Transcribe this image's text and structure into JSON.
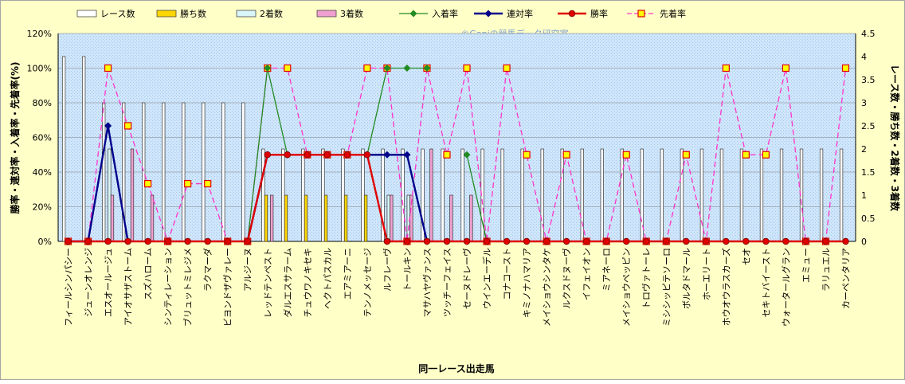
{
  "chart_data": {
    "type": "bar",
    "title": "",
    "watermark": "©Ganiの競馬データ研究室",
    "xlabel": "同一レース出走馬",
    "ylabel_left": "勝率・連対率・入着率・先着率(%)",
    "ylabel_right": "レース数・勝ち数・2着数・3着数",
    "left_ticks": [
      "0%",
      "20%",
      "40%",
      "60%",
      "80%",
      "100%",
      "120%"
    ],
    "right_ticks": [
      "0",
      "0.5",
      "1",
      "1.5",
      "2",
      "2.5",
      "3",
      "3.5",
      "4",
      "4.5"
    ],
    "ylim_left": [
      0,
      120
    ],
    "ylim_right": [
      0,
      4.5
    ],
    "grid": true,
    "legend_position": "top",
    "categories": [
      "フィールシンパシー",
      "ジューンオレンジ",
      "エスオールージュ",
      "アイオサザストーム",
      "スズハローム",
      "シンティレーション",
      "ブリュットミレジメ",
      "ラクマーダ",
      "ビヨンドザヴァレー",
      "アルジーヌ",
      "レッドテンペスト",
      "ダルエスサラーム",
      "チュウワノキセキ",
      "ヘクトパスカル",
      "エアミアーニ",
      "テンノメッセージ",
      "ルフレーヴ",
      "トールキン",
      "マサハヤヴァンス",
      "ツッチーフェイス",
      "セーヌドレーヴ",
      "ウインエーデル",
      "コナコースト",
      "キミノナハマリア",
      "メイショウシンタケ",
      "ルクスドヌーヴ",
      "イフェイオン",
      "ミアネーロ",
      "メイショウペッピン",
      "トロヴァトーレ",
      "ミシシッピテソーロ",
      "ボルタドマール",
      "ホーエリート",
      "ホウオウラスカーズ",
      "セオ",
      "セキトバイースト",
      "ウォータールグラン",
      "エミュー",
      "ラリュエル",
      "カーペンタリア"
    ],
    "series": [
      {
        "name": "レース数",
        "kind": "bar",
        "axis": "right",
        "color": "#ffffff",
        "values": [
          4,
          4,
          3,
          3,
          3,
          3,
          3,
          3,
          3,
          3,
          2,
          2,
          2,
          2,
          2,
          2,
          2,
          2,
          2,
          2,
          2,
          2,
          2,
          2,
          2,
          2,
          2,
          2,
          2,
          2,
          2,
          2,
          2,
          2,
          2,
          2,
          2,
          2,
          2,
          2
        ]
      },
      {
        "name": "勝ち数",
        "kind": "bar",
        "axis": "right",
        "color": "#ffd700",
        "values": [
          0,
          0,
          0,
          0,
          0,
          0,
          0,
          0,
          0,
          0,
          1,
          1,
          1,
          1,
          1,
          1,
          0,
          0,
          0,
          0,
          0,
          0,
          0,
          0,
          0,
          0,
          0,
          0,
          0,
          0,
          0,
          0,
          0,
          0,
          0,
          0,
          0,
          0,
          0,
          0
        ]
      },
      {
        "name": "2着数",
        "kind": "bar",
        "axis": "right",
        "color": "#d9f5f7",
        "values": [
          0,
          0,
          2,
          0,
          0,
          0,
          0,
          0,
          0,
          0,
          0,
          0,
          0,
          0,
          0,
          0,
          1,
          1,
          0,
          0,
          0,
          0,
          0,
          0,
          0,
          0,
          0,
          0,
          0,
          0,
          0,
          0,
          0,
          0,
          0,
          0,
          0,
          0,
          0,
          0
        ]
      },
      {
        "name": "3着数",
        "kind": "bar",
        "axis": "right",
        "color": "#f0a0d0",
        "values": [
          0,
          0,
          1,
          2,
          1,
          0,
          0,
          0,
          0,
          0,
          1,
          0,
          0,
          0,
          0,
          0,
          1,
          1,
          2,
          1,
          1,
          0,
          0,
          0,
          0,
          0,
          0,
          0,
          0,
          0,
          0,
          0,
          0,
          0,
          0,
          0,
          0,
          0,
          0,
          0
        ]
      },
      {
        "name": "入着率",
        "kind": "line",
        "axis": "left",
        "color": "#228b22",
        "marker": "diamond",
        "values": [
          0,
          0,
          66.7,
          0,
          null,
          null,
          null,
          null,
          null,
          0,
          100,
          50,
          null,
          null,
          null,
          50,
          100,
          100,
          100,
          null,
          50,
          0,
          null,
          null,
          null,
          null,
          null,
          null,
          null,
          null,
          null,
          null,
          null,
          null,
          null,
          null,
          null,
          null,
          null,
          null
        ]
      },
      {
        "name": "連対率",
        "kind": "line",
        "axis": "left",
        "color": "#00008b",
        "marker": "diamond",
        "values": [
          0,
          0,
          66.7,
          0,
          null,
          null,
          null,
          null,
          null,
          0,
          50,
          50,
          null,
          null,
          null,
          50,
          50,
          50,
          0,
          null,
          null,
          null,
          null,
          null,
          null,
          null,
          null,
          null,
          null,
          null,
          null,
          null,
          null,
          null,
          null,
          null,
          null,
          null,
          null,
          null
        ]
      },
      {
        "name": "勝率",
        "kind": "line",
        "axis": "left",
        "color": "#e00000",
        "marker": "circle",
        "values": [
          0,
          0,
          0,
          0,
          0,
          0,
          0,
          0,
          0,
          0,
          50,
          50,
          50,
          50,
          50,
          50,
          0,
          0,
          0,
          0,
          0,
          0,
          0,
          0,
          0,
          0,
          0,
          0,
          0,
          0,
          0,
          0,
          0,
          0,
          0,
          0,
          0,
          0,
          0,
          0
        ]
      },
      {
        "name": "先着率",
        "kind": "line",
        "axis": "left",
        "color": "#ff33cc",
        "dashed": true,
        "marker": "square",
        "marker_fill": "#ffff00",
        "marker_stroke": "#e00000",
        "values": [
          0,
          0,
          100,
          66.7,
          33.3,
          0,
          33.3,
          33.3,
          0,
          0,
          100,
          100,
          50,
          50,
          50,
          100,
          100,
          0,
          100,
          50,
          100,
          0,
          100,
          50,
          0,
          50,
          0,
          0,
          50,
          0,
          0,
          50,
          0,
          100,
          50,
          50,
          100,
          0,
          0,
          100
        ]
      }
    ]
  }
}
